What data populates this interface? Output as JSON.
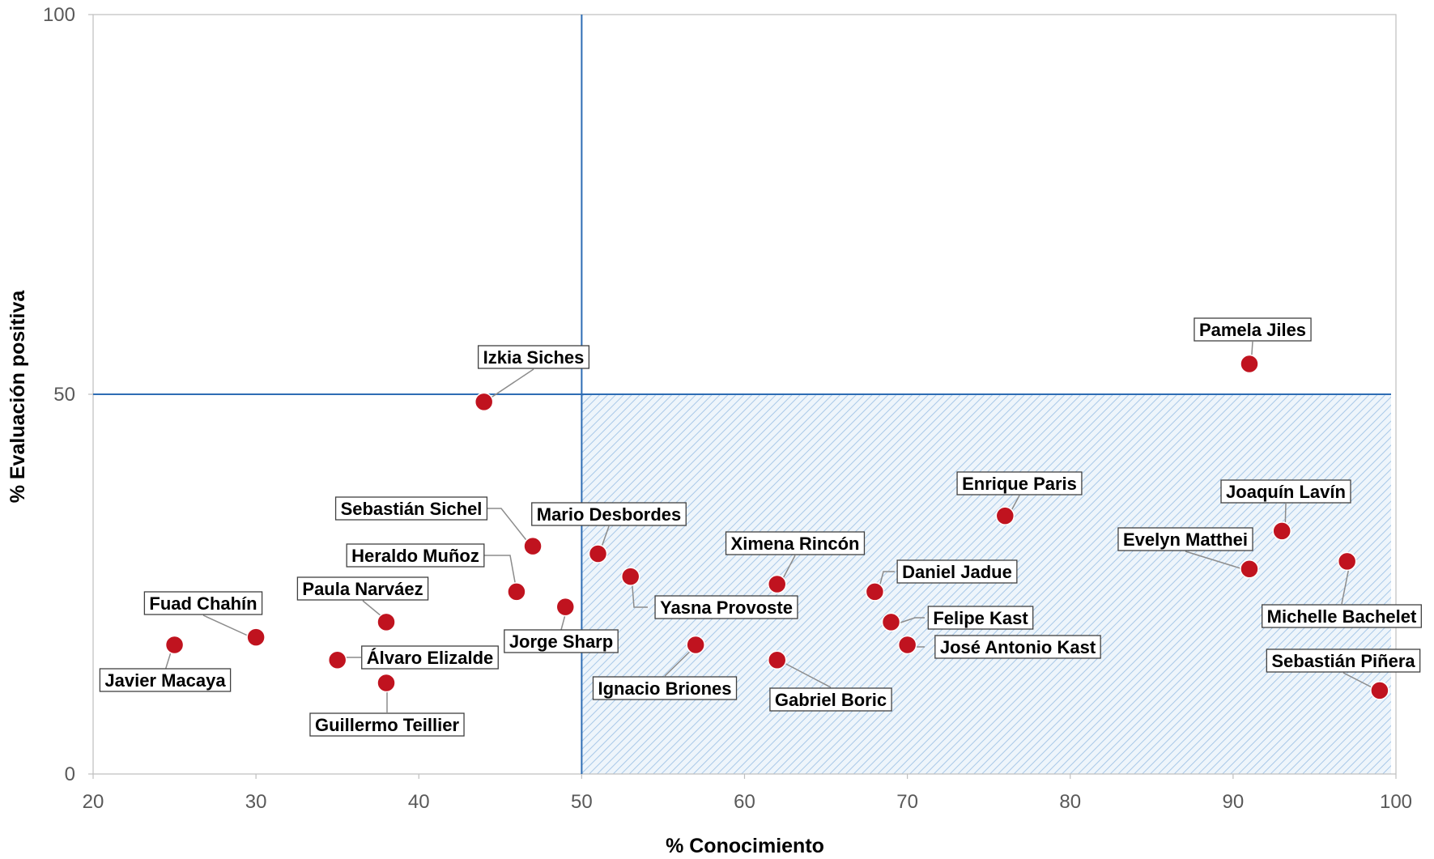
{
  "chart_data": {
    "type": "scatter",
    "title": "",
    "xlabel": "% Conocimiento",
    "ylabel": "% Evaluación positiva",
    "xlim": [
      20,
      100
    ],
    "ylim": [
      0,
      100
    ],
    "x_ticks": [
      "20",
      "30",
      "40",
      "50",
      "60",
      "70",
      "80",
      "90",
      "100"
    ],
    "y_ticks": [
      "0",
      "50",
      "100"
    ],
    "reference_lines": {
      "x": 50,
      "y": 50
    },
    "highlighted_quadrant": "x 50–100, y 0–50 (hatched)",
    "grid": false,
    "legend": "none",
    "colors": {
      "point": "#c0131f",
      "reference_line": "#2e6db4",
      "hatch": "#a8c8e8",
      "axis": "#bfbfbf"
    },
    "points": [
      {
        "name": "Fuad Chahín",
        "x": 30,
        "y": 18
      },
      {
        "name": "Javier Macaya",
        "x": 25,
        "y": 17
      },
      {
        "name": "Paula Narváez",
        "x": 38,
        "y": 20
      },
      {
        "name": "Álvaro Elizalde",
        "x": 35,
        "y": 15
      },
      {
        "name": "Guillermo Teillier",
        "x": 38,
        "y": 12
      },
      {
        "name": "Heraldo Muñoz",
        "x": 46,
        "y": 24
      },
      {
        "name": "Sebastián Sichel",
        "x": 47,
        "y": 30
      },
      {
        "name": "Izkia Siches",
        "x": 44,
        "y": 49
      },
      {
        "name": "Jorge Sharp",
        "x": 49,
        "y": 22
      },
      {
        "name": "Mario Desbordes",
        "x": 51,
        "y": 29
      },
      {
        "name": "Yasna Provoste",
        "x": 53,
        "y": 26
      },
      {
        "name": "Ignacio Briones",
        "x": 57,
        "y": 17
      },
      {
        "name": "Ximena Rincón",
        "x": 62,
        "y": 25
      },
      {
        "name": "Gabriel Boric",
        "x": 62,
        "y": 15
      },
      {
        "name": "Daniel Jadue",
        "x": 68,
        "y": 24
      },
      {
        "name": "Felipe Kast",
        "x": 69,
        "y": 20
      },
      {
        "name": "José Antonio Kast",
        "x": 70,
        "y": 17
      },
      {
        "name": "Enrique Paris",
        "x": 76,
        "y": 34
      },
      {
        "name": "Pamela Jiles",
        "x": 91,
        "y": 54
      },
      {
        "name": "Evelyn Matthei",
        "x": 91,
        "y": 27
      },
      {
        "name": "Joaquín Lavín",
        "x": 93,
        "y": 32
      },
      {
        "name": "Michelle Bachelet",
        "x": 97,
        "y": 28
      },
      {
        "name": "Sebastián Piñera",
        "x": 99,
        "y": 11
      }
    ]
  }
}
